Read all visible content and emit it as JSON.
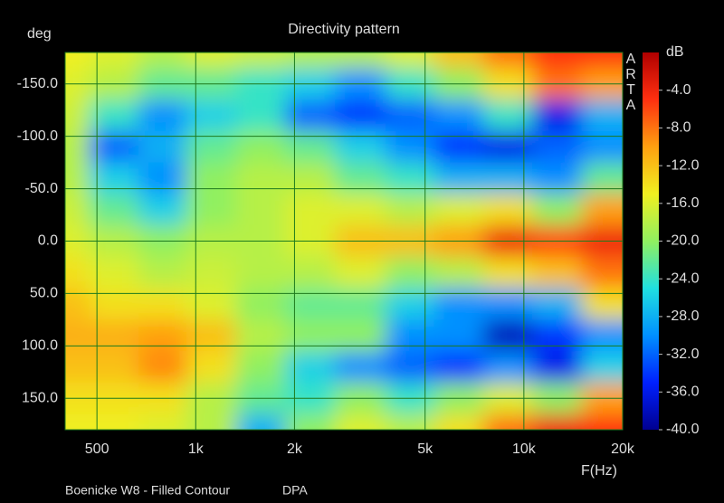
{
  "chart_data": {
    "type": "heatmap",
    "title": "Directivity pattern",
    "y_label": "deg",
    "x_label": "F(Hz)",
    "colorbar_label": "dB",
    "watermark": [
      "A",
      "R",
      "T",
      "A"
    ],
    "footer": [
      "Boenicke W8 - Filled Contour",
      "DPA"
    ],
    "x": [
      400,
      560,
      800,
      1100,
      1600,
      2200,
      3200,
      4500,
      6300,
      9000,
      12500,
      18000
    ],
    "y": [
      -180,
      -150,
      -120,
      -90,
      -60,
      -30,
      0,
      30,
      60,
      90,
      120,
      150,
      180
    ],
    "z": [
      [
        -15,
        -16,
        -18,
        -16,
        -17,
        -18,
        -18,
        -16,
        -12,
        -8,
        -5,
        -5
      ],
      [
        -16,
        -18,
        -22,
        -22,
        -24,
        -26,
        -30,
        -24,
        -20,
        -14,
        -8,
        -10
      ],
      [
        -17,
        -24,
        -30,
        -26,
        -24,
        -32,
        -34,
        -32,
        -30,
        -24,
        -36,
        -28
      ],
      [
        -18,
        -32,
        -28,
        -22,
        -20,
        -22,
        -26,
        -30,
        -34,
        -36,
        -32,
        -30
      ],
      [
        -18,
        -26,
        -30,
        -20,
        -18,
        -18,
        -22,
        -24,
        -28,
        -28,
        -30,
        -22
      ],
      [
        -17,
        -22,
        -26,
        -20,
        -18,
        -16,
        -16,
        -18,
        -16,
        -14,
        -20,
        -10
      ],
      [
        -16,
        -18,
        -20,
        -18,
        -18,
        -16,
        -12,
        -12,
        -10,
        -4,
        -6,
        -4
      ],
      [
        -14,
        -16,
        -18,
        -17,
        -18,
        -18,
        -16,
        -20,
        -18,
        -14,
        -12,
        -8
      ],
      [
        -12,
        -14,
        -14,
        -16,
        -20,
        -22,
        -22,
        -26,
        -30,
        -30,
        -28,
        -14
      ],
      [
        -11,
        -11,
        -10,
        -12,
        -18,
        -20,
        -20,
        -30,
        -30,
        -38,
        -34,
        -30
      ],
      [
        -12,
        -12,
        -9,
        -14,
        -20,
        -26,
        -30,
        -32,
        -34,
        -30,
        -36,
        -26
      ],
      [
        -14,
        -14,
        -14,
        -18,
        -22,
        -24,
        -20,
        -24,
        -20,
        -16,
        -20,
        -10
      ],
      [
        -15,
        -15,
        -16,
        -18,
        -28,
        -20,
        -16,
        -18,
        -14,
        -8,
        -4,
        -5
      ]
    ],
    "xlim": [
      400,
      20000
    ],
    "x_log": true,
    "xticks": [
      500,
      {
        "value": 1000,
        "label": "1k"
      },
      {
        "value": 2000,
        "label": "2k"
      },
      {
        "value": 5000,
        "label": "5k"
      },
      {
        "value": 10000,
        "label": "10k"
      },
      {
        "value": 20000,
        "label": "20k"
      }
    ],
    "ylim": [
      -180,
      180
    ],
    "y_inverted": true,
    "yticks": [
      {
        "value": -150,
        "label": "-150.0"
      },
      {
        "value": -100,
        "label": "-100.0"
      },
      {
        "value": -50,
        "label": "-50.0"
      },
      {
        "value": 0,
        "label": "0.0"
      },
      {
        "value": 50,
        "label": "50.0"
      },
      {
        "value": 100,
        "label": "100.0"
      },
      {
        "value": 150,
        "label": "150.0"
      }
    ],
    "zlim": [
      -40,
      0
    ],
    "zticks": [
      {
        "value": -4,
        "label": "-4.0"
      },
      {
        "value": -8,
        "label": "-8.0"
      },
      {
        "value": -12,
        "label": "-12.0"
      },
      {
        "value": -16,
        "label": "-16.0"
      },
      {
        "value": -20,
        "label": "-20.0"
      },
      {
        "value": -24,
        "label": "-24.0"
      },
      {
        "value": -28,
        "label": "-28.0"
      },
      {
        "value": -32,
        "label": "-32.0"
      },
      {
        "value": -36,
        "label": "-36.0"
      },
      {
        "value": -40,
        "label": "-40.0"
      }
    ],
    "colorscale": [
      "#000090",
      "#0020ff",
      "#0090ff",
      "#20e0e0",
      "#90f060",
      "#f0f020",
      "#ffa010",
      "#ff3010",
      "#b00000"
    ],
    "grid": true,
    "grid_color": "#1d7a1d"
  }
}
